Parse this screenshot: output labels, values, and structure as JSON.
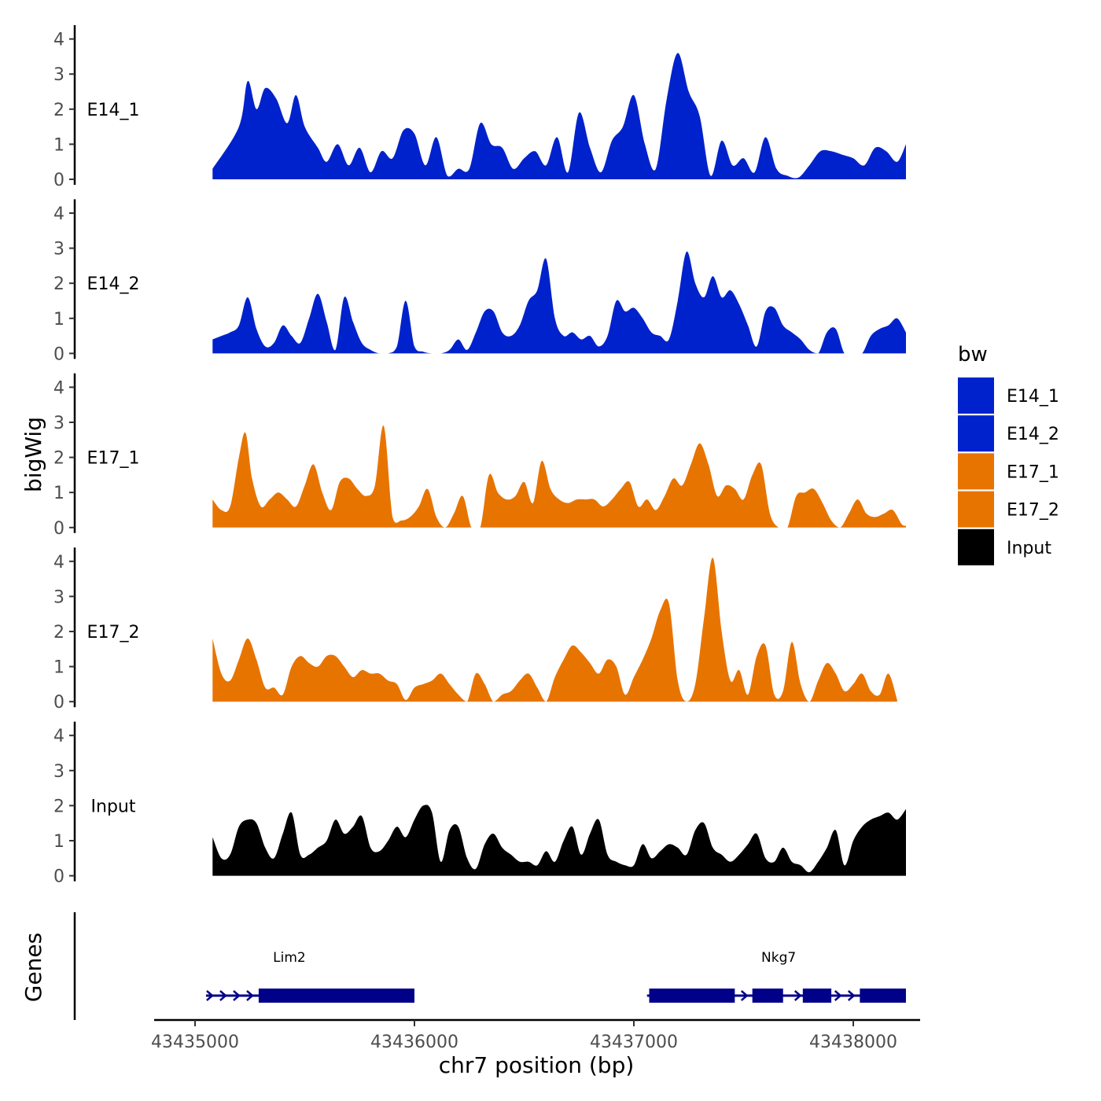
{
  "chart_data": {
    "type": "area",
    "title": "",
    "xlabel": "chr7 position (bp)",
    "ylabel": "bigWig",
    "genes_label": "Genes",
    "xlim": [
      43434830,
      43438340
    ],
    "xticks": [
      43435000,
      43436000,
      43437000,
      43438000
    ],
    "xtick_labels": [
      "43435000",
      "43436000",
      "43437000",
      "43438000"
    ],
    "ylim": [
      0,
      4.2
    ],
    "yticks": [
      0,
      1,
      2,
      3,
      4
    ],
    "ytick_labels": [
      "0",
      "1",
      "2",
      "3",
      "4"
    ],
    "legend": {
      "title": "bw",
      "position": "right",
      "entries": [
        {
          "label": "E14_1",
          "color": "#0022cc"
        },
        {
          "label": "E14_2",
          "color": "#0022cc"
        },
        {
          "label": "E17_1",
          "color": "#e87400"
        },
        {
          "label": "E17_2",
          "color": "#e87400"
        },
        {
          "label": "Input",
          "color": "#000000"
        }
      ]
    },
    "tracks": [
      {
        "name": "E14_1",
        "color": "#0022cc",
        "x": [
          43435080,
          43435200,
          43435240,
          43435280,
          43435320,
          43435370,
          43435420,
          43435460,
          43435500,
          43435560,
          43435600,
          43435650,
          43435700,
          43435750,
          43435800,
          43435850,
          43435900,
          43435950,
          43436000,
          43436050,
          43436100,
          43436150,
          43436200,
          43436250,
          43436300,
          43436350,
          43436400,
          43436450,
          43436500,
          43436550,
          43436600,
          43436650,
          43436700,
          43436750,
          43436800,
          43436850,
          43436900,
          43436950,
          43437000,
          43437050,
          43437100,
          43437150,
          43437200,
          43437250,
          43437300,
          43437350,
          43437400,
          43437450,
          43437500,
          43437550,
          43437600,
          43437650,
          43437700,
          43437750,
          43437800,
          43437850,
          43437900,
          43437950,
          43438000,
          43438050,
          43438100,
          43438150,
          43438200,
          43438240
        ],
        "y": [
          0.3,
          1.5,
          2.8,
          2.0,
          2.6,
          2.3,
          1.6,
          2.4,
          1.5,
          0.9,
          0.5,
          1.0,
          0.4,
          0.9,
          0.2,
          0.8,
          0.6,
          1.4,
          1.3,
          0.4,
          1.2,
          0.1,
          0.3,
          0.3,
          1.6,
          1.0,
          0.9,
          0.3,
          0.6,
          0.8,
          0.4,
          1.2,
          0.2,
          1.9,
          0.9,
          0.2,
          1.1,
          1.5,
          2.4,
          1.0,
          0.3,
          2.3,
          3.6,
          2.5,
          1.8,
          0.1,
          1.1,
          0.4,
          0.6,
          0.2,
          1.2,
          0.3,
          0.1,
          0.05,
          0.4,
          0.8,
          0.8,
          0.7,
          0.6,
          0.4,
          0.9,
          0.8,
          0.5,
          1.0
        ]
      },
      {
        "name": "E14_2",
        "color": "#0022cc",
        "x": [
          43435080,
          43435120,
          43435160,
          43435200,
          43435240,
          43435280,
          43435320,
          43435360,
          43435400,
          43435440,
          43435480,
          43435520,
          43435560,
          43435600,
          43435640,
          43435680,
          43435720,
          43435760,
          43435800,
          43435840,
          43435880,
          43435920,
          43435960,
          43436000,
          43436040,
          43436080,
          43436120,
          43436160,
          43436200,
          43436240,
          43436280,
          43436320,
          43436360,
          43436400,
          43436440,
          43436480,
          43436520,
          43436560,
          43436600,
          43436640,
          43436680,
          43436720,
          43436760,
          43436800,
          43436840,
          43436880,
          43436920,
          43436960,
          43437000,
          43437040,
          43437080,
          43437120,
          43437160,
          43437200,
          43437240,
          43437280,
          43437320,
          43437360,
          43437400,
          43437440,
          43437480,
          43437520,
          43437560,
          43437600,
          43437640,
          43437680,
          43437720,
          43437760,
          43437800,
          43437840,
          43437880,
          43437920,
          43437960,
          43438000,
          43438040,
          43438080,
          43438120,
          43438160,
          43438200,
          43438240
        ],
        "y": [
          0.4,
          0.5,
          0.6,
          0.8,
          1.6,
          0.7,
          0.2,
          0.3,
          0.8,
          0.5,
          0.3,
          1.0,
          1.7,
          0.9,
          0.1,
          1.6,
          0.9,
          0.3,
          0.1,
          0,
          0,
          0.2,
          1.5,
          0.2,
          0.05,
          0,
          0,
          0.1,
          0.4,
          0.1,
          0.6,
          1.2,
          1.2,
          0.6,
          0.5,
          0.8,
          1.5,
          1.8,
          2.7,
          1.0,
          0.5,
          0.6,
          0.4,
          0.5,
          0.2,
          0.5,
          1.5,
          1.2,
          1.3,
          1.0,
          0.6,
          0.5,
          0.4,
          1.5,
          2.9,
          2.0,
          1.6,
          2.2,
          1.6,
          1.8,
          1.4,
          0.8,
          0.2,
          1.2,
          1.3,
          0.8,
          0.6,
          0.4,
          0.1,
          0,
          0.6,
          0.7,
          0,
          0,
          0,
          0.5,
          0.7,
          0.8,
          1.0,
          0.6
        ]
      },
      {
        "name": "E17_1",
        "color": "#e87400",
        "x": [
          43435080,
          43435120,
          43435160,
          43435200,
          43435230,
          43435260,
          43435300,
          43435340,
          43435380,
          43435420,
          43435460,
          43435500,
          43435540,
          43435580,
          43435620,
          43435660,
          43435700,
          43435740,
          43435780,
          43435820,
          43435860,
          43435900,
          43435940,
          43435980,
          43436020,
          43436060,
          43436100,
          43436140,
          43436180,
          43436220,
          43436260,
          43436300,
          43436340,
          43436380,
          43436420,
          43436460,
          43436500,
          43436540,
          43436580,
          43436620,
          43436660,
          43436700,
          43436740,
          43436780,
          43436820,
          43436860,
          43436900,
          43436940,
          43436980,
          43437020,
          43437060,
          43437100,
          43437140,
          43437180,
          43437220,
          43437260,
          43437300,
          43437340,
          43437380,
          43437420,
          43437460,
          43437500,
          43437540,
          43437580,
          43437620,
          43437660,
          43437700,
          43437740,
          43437780,
          43437820,
          43437860,
          43437900,
          43437940,
          43437980,
          43438020,
          43438060,
          43438100,
          43438140,
          43438180,
          43438220,
          43438240
        ],
        "y": [
          0.8,
          0.5,
          0.6,
          2.0,
          2.7,
          1.4,
          0.6,
          0.8,
          1.0,
          0.8,
          0.6,
          1.2,
          1.8,
          1.0,
          0.5,
          1.3,
          1.4,
          1.1,
          0.9,
          1.2,
          2.9,
          0.3,
          0.2,
          0.3,
          0.6,
          1.1,
          0.3,
          0,
          0.4,
          0.9,
          0,
          0,
          1.5,
          1.0,
          0.8,
          0.9,
          1.3,
          0.7,
          1.9,
          1.1,
          0.8,
          0.7,
          0.8,
          0.8,
          0.8,
          0.6,
          0.8,
          1.1,
          1.3,
          0.6,
          0.8,
          0.5,
          0.9,
          1.4,
          1.2,
          1.8,
          2.4,
          1.8,
          0.9,
          1.2,
          1.1,
          0.8,
          1.5,
          1.8,
          0.4,
          0,
          0,
          0.9,
          1.0,
          1.1,
          0.7,
          0.2,
          0,
          0.4,
          0.8,
          0.4,
          0.3,
          0.4,
          0.5,
          0.1,
          0.05
        ]
      },
      {
        "name": "E17_2",
        "color": "#e87400",
        "x": [
          43435080,
          43435120,
          43435160,
          43435200,
          43435240,
          43435280,
          43435320,
          43435360,
          43435400,
          43435440,
          43435480,
          43435520,
          43435560,
          43435600,
          43435640,
          43435680,
          43435720,
          43435760,
          43435800,
          43435840,
          43435880,
          43435920,
          43435960,
          43436000,
          43436040,
          43436080,
          43436120,
          43436160,
          43436200,
          43436240,
          43436280,
          43436320,
          43436360,
          43436400,
          43436440,
          43436480,
          43436520,
          43436560,
          43436600,
          43436640,
          43436680,
          43436720,
          43436760,
          43436800,
          43436840,
          43436880,
          43436920,
          43436960,
          43437000,
          43437040,
          43437080,
          43437120,
          43437160,
          43437200,
          43437240,
          43437280,
          43437320,
          43437360,
          43437400,
          43437440,
          43437480,
          43437520,
          43437560,
          43437600,
          43437640,
          43437680,
          43437720,
          43437760,
          43437800,
          43437840,
          43437880,
          43437920,
          43437960,
          43438000,
          43438040,
          43438080,
          43438120,
          43438160,
          43438200
        ],
        "y": [
          1.8,
          0.8,
          0.6,
          1.2,
          1.8,
          1.2,
          0.4,
          0.4,
          0.2,
          1.0,
          1.3,
          1.1,
          1.0,
          1.3,
          1.3,
          1.0,
          0.7,
          0.9,
          0.8,
          0.8,
          0.6,
          0.5,
          0.05,
          0.4,
          0.5,
          0.6,
          0.8,
          0.5,
          0.2,
          0,
          0.8,
          0.5,
          0,
          0.2,
          0.3,
          0.6,
          0.8,
          0.4,
          0,
          0.7,
          1.2,
          1.6,
          1.4,
          1.1,
          0.8,
          1.2,
          1.0,
          0.2,
          0.7,
          1.2,
          1.8,
          2.6,
          2.8,
          0.6,
          0,
          0.5,
          2.4,
          4.1,
          2.0,
          0.6,
          0.9,
          0.2,
          1.3,
          1.6,
          0.2,
          0.3,
          1.7,
          0.5,
          0,
          0.6,
          1.1,
          0.8,
          0.3,
          0.5,
          0.8,
          0.3,
          0.2,
          0.8,
          0.05
        ]
      },
      {
        "name": "Input",
        "color": "#000000",
        "x": [
          43435080,
          43435120,
          43435160,
          43435200,
          43435240,
          43435280,
          43435320,
          43435360,
          43435400,
          43435440,
          43435480,
          43435520,
          43435560,
          43435600,
          43435640,
          43435680,
          43435720,
          43435760,
          43435800,
          43435840,
          43435880,
          43435920,
          43435960,
          43436000,
          43436040,
          43436080,
          43436120,
          43436160,
          43436200,
          43436240,
          43436280,
          43436320,
          43436360,
          43436400,
          43436440,
          43436480,
          43436520,
          43436560,
          43436600,
          43436640,
          43436680,
          43436720,
          43436760,
          43436800,
          43436840,
          43436880,
          43436920,
          43436960,
          43437000,
          43437040,
          43437080,
          43437120,
          43437160,
          43437200,
          43437240,
          43437280,
          43437320,
          43437360,
          43437400,
          43437440,
          43437480,
          43437520,
          43437560,
          43437600,
          43437640,
          43437680,
          43437720,
          43437760,
          43437800,
          43437840,
          43437880,
          43437920,
          43437960,
          43438000,
          43438040,
          43438080,
          43438120,
          43438160,
          43438200,
          43438240
        ],
        "y": [
          1.1,
          0.5,
          0.6,
          1.4,
          1.6,
          1.5,
          0.8,
          0.5,
          1.2,
          1.8,
          0.6,
          0.6,
          0.8,
          1.0,
          1.6,
          1.2,
          1.4,
          1.7,
          0.8,
          0.7,
          1.0,
          1.4,
          1.1,
          1.6,
          2.0,
          1.8,
          0.4,
          1.3,
          1.4,
          0.5,
          0.2,
          0.9,
          1.2,
          0.8,
          0.6,
          0.4,
          0.4,
          0.3,
          0.7,
          0.4,
          1.0,
          1.4,
          0.6,
          1.2,
          1.6,
          0.6,
          0.4,
          0.3,
          0.3,
          0.9,
          0.5,
          0.7,
          0.9,
          0.8,
          0.6,
          1.3,
          1.5,
          0.8,
          0.6,
          0.4,
          0.6,
          0.9,
          1.2,
          0.5,
          0.4,
          0.8,
          0.4,
          0.3,
          0.1,
          0.4,
          0.8,
          1.3,
          0.3,
          1.0,
          1.4,
          1.6,
          1.7,
          1.8,
          1.6,
          1.9
        ]
      }
    ],
    "genes": [
      {
        "name": "Lim2",
        "strand": "+",
        "start": 43435050,
        "end": 43436000,
        "exons": [
          [
            43435290,
            43436000
          ]
        ],
        "label_position": 43435430
      },
      {
        "name": "Nkg7",
        "strand": "+",
        "start": 43437060,
        "end": 43438240,
        "exons": [
          [
            43437070,
            43437460
          ],
          [
            43437540,
            43437680
          ],
          [
            43437770,
            43437900
          ],
          [
            43438030,
            43438240
          ]
        ],
        "label_position": 43437660
      }
    ]
  }
}
